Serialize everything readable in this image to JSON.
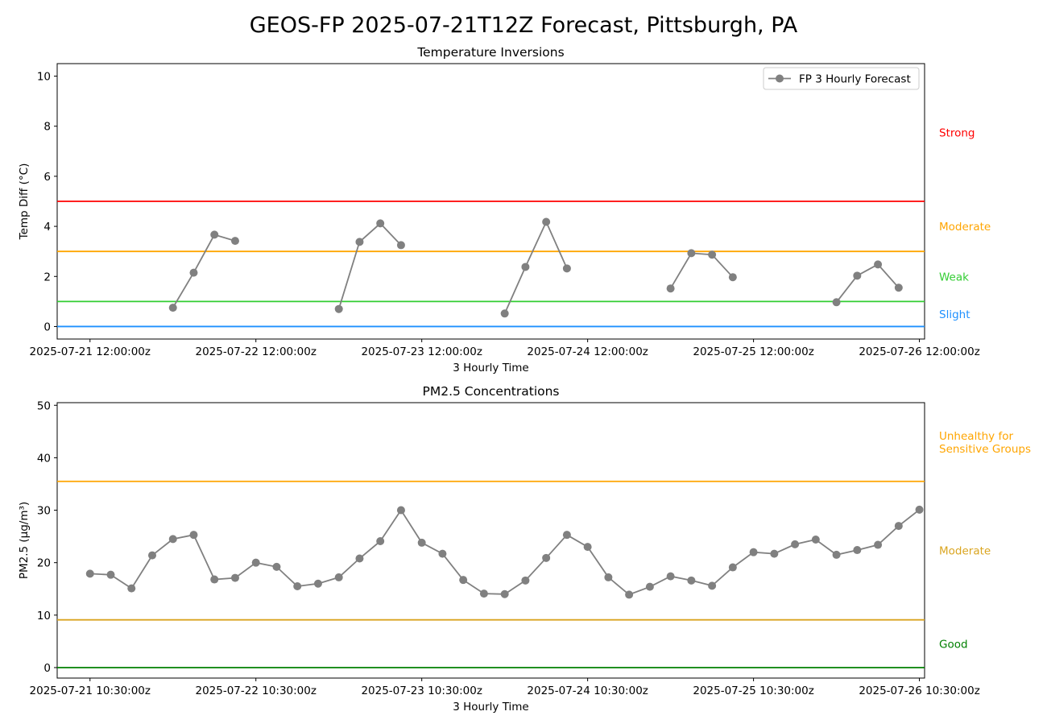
{
  "figure_title": "GEOS-FP 2025-07-21T12Z Forecast, Pittsburgh, PA",
  "chart_data": [
    {
      "type": "line",
      "title": "Temperature Inversions",
      "xlabel": "3 Hourly Time",
      "ylabel": "Temp Diff (°C)",
      "xlim": [
        "2025-07-21 07:15",
        "2025-07-26 12:45"
      ],
      "ylim": [
        -0.5,
        10.5
      ],
      "y_ticks": [
        0,
        2,
        4,
        6,
        8,
        10
      ],
      "x_ticks": [
        {
          "time": "2025-07-21 12:00",
          "label": "2025-07-21 12:00:00z"
        },
        {
          "time": "2025-07-22 12:00",
          "label": "2025-07-22 12:00:00z"
        },
        {
          "time": "2025-07-23 12:00",
          "label": "2025-07-23 12:00:00z"
        },
        {
          "time": "2025-07-24 12:00",
          "label": "2025-07-24 12:00:00z"
        },
        {
          "time": "2025-07-25 12:00",
          "label": "2025-07-25 12:00:00z"
        },
        {
          "time": "2025-07-26 12:00",
          "label": "2025-07-26 12:00:00z"
        }
      ],
      "legend": {
        "position": "top-right",
        "label": "FP 3 Hourly Forecast"
      },
      "series": [
        {
          "name": "FP 3 Hourly Forecast",
          "color": "#808080",
          "segments": [
            [
              {
                "time": "2025-07-22 00:00",
                "y": 0.75
              },
              {
                "time": "2025-07-22 03:00",
                "y": 2.15
              },
              {
                "time": "2025-07-22 06:00",
                "y": 3.67
              },
              {
                "time": "2025-07-22 09:00",
                "y": 3.42
              }
            ],
            [
              {
                "time": "2025-07-23 00:00",
                "y": 0.7
              },
              {
                "time": "2025-07-23 03:00",
                "y": 3.38
              },
              {
                "time": "2025-07-23 06:00",
                "y": 4.12
              },
              {
                "time": "2025-07-23 09:00",
                "y": 3.25
              }
            ],
            [
              {
                "time": "2025-07-24 00:00",
                "y": 0.52
              },
              {
                "time": "2025-07-24 03:00",
                "y": 2.38
              },
              {
                "time": "2025-07-24 06:00",
                "y": 4.18
              },
              {
                "time": "2025-07-24 09:00",
                "y": 2.32
              }
            ],
            [
              {
                "time": "2025-07-25 00:00",
                "y": 1.52
              },
              {
                "time": "2025-07-25 03:00",
                "y": 2.93
              },
              {
                "time": "2025-07-25 06:00",
                "y": 2.87
              },
              {
                "time": "2025-07-25 09:00",
                "y": 1.97
              }
            ],
            [
              {
                "time": "2025-07-26 00:00",
                "y": 0.97
              },
              {
                "time": "2025-07-26 03:00",
                "y": 2.03
              },
              {
                "time": "2025-07-26 06:00",
                "y": 2.48
              },
              {
                "time": "2025-07-26 09:00",
                "y": 1.55
              }
            ]
          ]
        }
      ],
      "threshold_lines": [
        {
          "y": 0,
          "color": "#1e90ff"
        },
        {
          "y": 1,
          "color": "#32cd32"
        },
        {
          "y": 3,
          "color": "#ffa500"
        },
        {
          "y": 5,
          "color": "#ff0000"
        }
      ],
      "category_labels": [
        {
          "label": "Slight",
          "y": 0.5,
          "color": "#1e90ff"
        },
        {
          "label": "Weak",
          "y": 2.0,
          "color": "#32cd32"
        },
        {
          "label": "Moderate",
          "y": 4.0,
          "color": "#ffa500"
        },
        {
          "label": "Strong",
          "y": 7.75,
          "color": "#ff0000"
        }
      ]
    },
    {
      "type": "line",
      "title": "PM2.5 Concentrations",
      "xlabel": "3 Hourly Time",
      "ylabel": "PM2.5 (µg/m³)",
      "xlim": [
        "2025-07-21 05:45",
        "2025-07-26 11:15"
      ],
      "ylim": [
        -2,
        50.5
      ],
      "y_ticks": [
        0,
        10,
        20,
        30,
        40,
        50
      ],
      "x_ticks": [
        {
          "time": "2025-07-21 10:30",
          "label": "2025-07-21 10:30:00z"
        },
        {
          "time": "2025-07-22 10:30",
          "label": "2025-07-22 10:30:00z"
        },
        {
          "time": "2025-07-23 10:30",
          "label": "2025-07-23 10:30:00z"
        },
        {
          "time": "2025-07-24 10:30",
          "label": "2025-07-24 10:30:00z"
        },
        {
          "time": "2025-07-25 10:30",
          "label": "2025-07-25 10:30:00z"
        },
        {
          "time": "2025-07-26 10:30",
          "label": "2025-07-26 10:30:00z"
        }
      ],
      "series": [
        {
          "color": "#808080",
          "segments": [
            [
              {
                "time": "2025-07-21 10:30",
                "y": 17.9
              },
              {
                "time": "2025-07-21 13:30",
                "y": 17.7
              },
              {
                "time": "2025-07-21 16:30",
                "y": 15.1
              },
              {
                "time": "2025-07-21 19:30",
                "y": 21.4
              },
              {
                "time": "2025-07-21 22:30",
                "y": 24.5
              },
              {
                "time": "2025-07-22 01:30",
                "y": 25.3
              },
              {
                "time": "2025-07-22 04:30",
                "y": 16.8
              },
              {
                "time": "2025-07-22 07:30",
                "y": 17.1
              },
              {
                "time": "2025-07-22 10:30",
                "y": 20.0
              },
              {
                "time": "2025-07-22 13:30",
                "y": 19.2
              },
              {
                "time": "2025-07-22 16:30",
                "y": 15.5
              },
              {
                "time": "2025-07-22 19:30",
                "y": 16.0
              },
              {
                "time": "2025-07-22 22:30",
                "y": 17.2
              },
              {
                "time": "2025-07-23 01:30",
                "y": 20.8
              },
              {
                "time": "2025-07-23 04:30",
                "y": 24.1
              },
              {
                "time": "2025-07-23 07:30",
                "y": 30.0
              },
              {
                "time": "2025-07-23 10:30",
                "y": 23.8
              },
              {
                "time": "2025-07-23 13:30",
                "y": 21.7
              },
              {
                "time": "2025-07-23 16:30",
                "y": 16.7
              },
              {
                "time": "2025-07-23 19:30",
                "y": 14.1
              },
              {
                "time": "2025-07-23 22:30",
                "y": 14.0
              },
              {
                "time": "2025-07-24 01:30",
                "y": 16.6
              },
              {
                "time": "2025-07-24 04:30",
                "y": 20.9
              },
              {
                "time": "2025-07-24 07:30",
                "y": 25.3
              },
              {
                "time": "2025-07-24 10:30",
                "y": 23.0
              },
              {
                "time": "2025-07-24 13:30",
                "y": 17.2
              },
              {
                "time": "2025-07-24 16:30",
                "y": 13.9
              },
              {
                "time": "2025-07-24 19:30",
                "y": 15.4
              },
              {
                "time": "2025-07-24 22:30",
                "y": 17.4
              },
              {
                "time": "2025-07-25 01:30",
                "y": 16.6
              },
              {
                "time": "2025-07-25 04:30",
                "y": 15.6
              },
              {
                "time": "2025-07-25 07:30",
                "y": 19.1
              },
              {
                "time": "2025-07-25 10:30",
                "y": 22.0
              },
              {
                "time": "2025-07-25 13:30",
                "y": 21.7
              },
              {
                "time": "2025-07-25 16:30",
                "y": 23.5
              },
              {
                "time": "2025-07-25 19:30",
                "y": 24.4
              },
              {
                "time": "2025-07-25 22:30",
                "y": 21.5
              },
              {
                "time": "2025-07-26 01:30",
                "y": 22.4
              },
              {
                "time": "2025-07-26 04:30",
                "y": 23.4
              },
              {
                "time": "2025-07-26 07:30",
                "y": 27.0
              },
              {
                "time": "2025-07-26 10:30",
                "y": 30.1
              }
            ]
          ]
        }
      ],
      "threshold_lines": [
        {
          "y": 0,
          "color": "#008000"
        },
        {
          "y": 9.1,
          "color": "#daa520"
        },
        {
          "y": 35.5,
          "color": "#ffa500"
        }
      ],
      "category_labels": [
        {
          "label": "Good",
          "y": 4.5,
          "color": "#008000"
        },
        {
          "label": "Moderate",
          "y": 22.3,
          "color": "#daa520"
        },
        {
          "label": "Unhealthy for\nSensitive Groups",
          "y": 43.0,
          "color": "#ffa500"
        }
      ]
    }
  ]
}
